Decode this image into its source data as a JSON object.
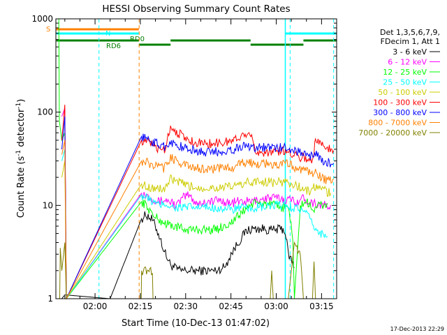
{
  "chart_data": {
    "type": "line",
    "title": "HESSI Observing Summary Count Rates",
    "xlabel": "Start Time (10-Dec-13 01:47:02)",
    "ylabel": "Count Rate (s-1 detector-1)",
    "ylabel_parts": {
      "main": "Count Rate (s",
      "exp1": "-1",
      "mid": " detector",
      "exp2": "-1",
      "end": ")"
    },
    "yscale": "log",
    "ylim": [
      1,
      1000
    ],
    "y_ticks": [
      {
        "value": 1,
        "label": "1"
      },
      {
        "value": 10,
        "label": "10"
      },
      {
        "value": 100,
        "label": "100"
      },
      {
        "value": 1000,
        "label": "1000"
      }
    ],
    "xlim_minutes": [
      107.033,
      200
    ],
    "x_ticks": [
      {
        "minutes": 120,
        "label": "02:00"
      },
      {
        "minutes": 135,
        "label": "02:15"
      },
      {
        "minutes": 150,
        "label": "02:30"
      },
      {
        "minutes": 165,
        "label": "02:45"
      },
      {
        "minutes": 180,
        "label": "03:00"
      },
      {
        "minutes": 195,
        "label": "03:15"
      }
    ],
    "legend_header": [
      "Det 1,3,5,6,7,9,",
      "FDecim 1, Att 1"
    ],
    "legend_placement": "right",
    "timestamp": "17-Dec-2013 22:29",
    "series": [
      {
        "name": "3 - 6 keV",
        "color": "#000000",
        "points": [
          [
            109,
            1
          ],
          [
            110,
            1.1
          ],
          [
            125,
            1
          ],
          [
            135.4,
            7.2
          ],
          [
            137,
            8
          ],
          [
            139,
            7
          ],
          [
            141,
            5
          ],
          [
            143,
            3.2
          ],
          [
            145,
            2.3
          ],
          [
            148,
            2
          ],
          [
            152,
            2
          ],
          [
            156,
            2
          ],
          [
            160,
            2
          ],
          [
            163,
            2.2
          ],
          [
            165,
            3
          ],
          [
            167,
            3.8
          ],
          [
            170,
            5.3
          ],
          [
            172,
            5.6
          ],
          [
            176,
            5.6
          ],
          [
            178,
            5.4
          ],
          [
            182,
            5.6
          ],
          [
            183,
            5.2
          ],
          [
            184,
            3
          ],
          [
            185.5,
            2.4
          ],
          [
            186,
            2
          ]
        ]
      },
      {
        "name": "6 - 12 keV",
        "color": "#ff00ff",
        "points": [
          [
            109,
            90
          ],
          [
            110,
            110
          ],
          [
            110.5,
            1
          ],
          [
            135.4,
            13.5
          ],
          [
            137,
            13
          ],
          [
            139,
            12
          ],
          [
            141,
            11
          ],
          [
            143,
            11.5
          ],
          [
            145,
            11
          ],
          [
            147,
            10
          ],
          [
            149,
            12
          ],
          [
            151,
            13
          ],
          [
            153,
            11
          ],
          [
            155,
            10.5
          ],
          [
            157,
            11
          ],
          [
            159,
            11
          ],
          [
            161,
            11.5
          ],
          [
            163,
            11
          ],
          [
            165,
            10.5
          ],
          [
            167,
            11
          ],
          [
            169,
            11
          ],
          [
            172,
            11
          ],
          [
            174,
            11.5
          ],
          [
            177,
            12
          ],
          [
            180,
            12
          ],
          [
            183,
            11.5
          ],
          [
            185,
            11.5
          ],
          [
            187,
            11
          ],
          [
            189,
            12
          ],
          [
            191,
            11
          ],
          [
            193,
            10.5
          ],
          [
            196,
            10
          ],
          [
            198,
            9.5
          ]
        ]
      },
      {
        "name": "12 - 25 keV",
        "color": "#00ff00",
        "points": [
          [
            108,
            1000
          ],
          [
            108.2,
            80
          ],
          [
            109,
            50
          ],
          [
            110,
            60
          ],
          [
            110.5,
            1
          ],
          [
            135.4,
            11
          ],
          [
            137,
            10
          ],
          [
            139,
            8
          ],
          [
            141,
            7
          ],
          [
            143,
            6.5
          ],
          [
            146,
            6
          ],
          [
            150,
            5.5
          ],
          [
            155,
            5.5
          ],
          [
            160,
            5.5
          ],
          [
            165,
            6.5
          ],
          [
            168,
            8
          ],
          [
            171,
            10
          ],
          [
            173,
            10.5
          ],
          [
            176,
            10.5
          ],
          [
            179,
            10
          ],
          [
            182,
            9.5
          ],
          [
            184,
            9.5
          ],
          [
            185.5,
            4.5
          ],
          [
            186,
            1
          ],
          [
            188,
            10
          ],
          [
            190,
            11
          ],
          [
            192,
            9
          ],
          [
            194,
            10
          ],
          [
            197,
            10
          ]
        ]
      },
      {
        "name": "25 - 50 keV",
        "color": "#00ffff",
        "points": [
          [
            109,
            30
          ],
          [
            110,
            40
          ],
          [
            110.5,
            1
          ],
          [
            135.4,
            13
          ],
          [
            137,
            12
          ],
          [
            139,
            11
          ],
          [
            141,
            10
          ],
          [
            143,
            10.5
          ],
          [
            146,
            9.5
          ],
          [
            150,
            9.5
          ],
          [
            155,
            9.5
          ],
          [
            160,
            9.5
          ],
          [
            165,
            9
          ],
          [
            168,
            9.5
          ],
          [
            171,
            9
          ],
          [
            173,
            9.5
          ],
          [
            176,
            9.5
          ],
          [
            180,
            10
          ],
          [
            183,
            10
          ],
          [
            185,
            9.5
          ],
          [
            187,
            9.5
          ],
          [
            190,
            8
          ],
          [
            192.5,
            6
          ],
          [
            194,
            5
          ],
          [
            197,
            5
          ]
        ]
      },
      {
        "name": "50 - 100 keV",
        "color": "#cccc00",
        "points": [
          [
            109,
            20
          ],
          [
            110,
            30
          ],
          [
            110.5,
            1
          ],
          [
            135.4,
            17
          ],
          [
            137,
            16
          ],
          [
            139,
            15.5
          ],
          [
            141,
            15
          ],
          [
            143,
            15
          ],
          [
            145,
            19
          ],
          [
            147,
            18
          ],
          [
            149,
            17
          ],
          [
            151,
            16
          ],
          [
            154,
            15.5
          ],
          [
            158,
            15.5
          ],
          [
            162,
            15.5
          ],
          [
            166,
            16
          ],
          [
            170,
            17.5
          ],
          [
            173,
            18
          ],
          [
            177,
            18
          ],
          [
            180,
            17.5
          ],
          [
            183,
            18
          ],
          [
            185,
            17
          ],
          [
            187,
            16
          ],
          [
            189,
            15
          ],
          [
            191,
            14
          ],
          [
            193,
            16
          ],
          [
            195,
            15
          ],
          [
            198,
            13.5
          ]
        ]
      },
      {
        "name": "100 - 300 keV",
        "color": "#ff0000",
        "points": [
          [
            109,
            50
          ],
          [
            110,
            120
          ],
          [
            110.5,
            1
          ],
          [
            135.4,
            50
          ],
          [
            137,
            48
          ],
          [
            139,
            45
          ],
          [
            141,
            40
          ],
          [
            143,
            40
          ],
          [
            145,
            70
          ],
          [
            147,
            62
          ],
          [
            149,
            55
          ],
          [
            151,
            50
          ],
          [
            154,
            47
          ],
          [
            158,
            46
          ],
          [
            162,
            47
          ],
          [
            166,
            50
          ],
          [
            170,
            60
          ],
          [
            171,
            65
          ],
          [
            173,
            38
          ],
          [
            177,
            37
          ],
          [
            180,
            38
          ],
          [
            183,
            38
          ],
          [
            185,
            37
          ],
          [
            186.5,
            35
          ],
          [
            188,
            33
          ],
          [
            190,
            32
          ],
          [
            192,
            30
          ],
          [
            193,
            50
          ],
          [
            195,
            45
          ],
          [
            197,
            42
          ],
          [
            199,
            40
          ]
        ]
      },
      {
        "name": "300 - 800 keV",
        "color": "#0000ff",
        "points": [
          [
            109,
            40
          ],
          [
            110,
            90
          ],
          [
            110.5,
            1
          ],
          [
            135.4,
            55
          ],
          [
            137,
            52
          ],
          [
            139,
            48
          ],
          [
            141,
            45
          ],
          [
            143,
            43
          ],
          [
            145,
            48
          ],
          [
            147,
            44
          ],
          [
            149,
            42
          ],
          [
            151,
            40
          ],
          [
            154,
            38
          ],
          [
            158,
            37
          ],
          [
            162,
            38
          ],
          [
            166,
            40
          ],
          [
            170,
            44
          ],
          [
            173,
            42
          ],
          [
            177,
            42
          ],
          [
            180,
            41
          ],
          [
            183,
            42
          ],
          [
            185,
            40
          ],
          [
            187,
            38
          ],
          [
            189,
            36
          ],
          [
            191,
            34
          ],
          [
            193,
            36
          ],
          [
            195,
            30
          ],
          [
            197,
            29
          ],
          [
            199,
            28
          ]
        ]
      },
      {
        "name": "800 - 7000 keV",
        "color": "#ff8000",
        "points": [
          [
            109,
            35
          ],
          [
            110,
            50
          ],
          [
            110.5,
            1
          ],
          [
            135.4,
            30
          ],
          [
            137,
            29
          ],
          [
            139,
            27
          ],
          [
            141,
            26
          ],
          [
            143,
            25
          ],
          [
            145,
            33
          ],
          [
            147,
            30
          ],
          [
            149,
            28
          ],
          [
            151,
            26
          ],
          [
            154,
            25
          ],
          [
            158,
            24.5
          ],
          [
            162,
            25
          ],
          [
            166,
            26
          ],
          [
            170,
            29
          ],
          [
            173,
            28
          ],
          [
            177,
            28
          ],
          [
            180,
            27
          ],
          [
            183,
            28
          ],
          [
            185,
            27
          ],
          [
            187,
            25
          ],
          [
            189,
            24
          ],
          [
            191,
            22
          ],
          [
            193,
            23
          ],
          [
            195,
            20
          ],
          [
            197,
            18.5
          ],
          [
            199,
            18
          ]
        ]
      },
      {
        "name": "7000 - 20000 keV",
        "color": "#808000",
        "points": [
          [
            108.3,
            1
          ],
          [
            108.5,
            3.5
          ],
          [
            109,
            2
          ],
          [
            110,
            4
          ],
          [
            110.5,
            1
          ],
          [
            135.3,
            1
          ],
          [
            135.4,
            2
          ],
          [
            139,
            2
          ],
          [
            139.2,
            1
          ],
          [
            178,
            1
          ],
          [
            178.5,
            2
          ],
          [
            179,
            1
          ],
          [
            184,
            1
          ],
          [
            186,
            4
          ],
          [
            188,
            3
          ],
          [
            189,
            1
          ],
          [
            192,
            1
          ],
          [
            192.5,
            2.5
          ],
          [
            193,
            1
          ]
        ]
      }
    ],
    "state_bars": [
      {
        "label": "S",
        "color": "#ff8000"
      },
      {
        "label": "N",
        "color": "#00ffff"
      },
      {
        "label": "RD6",
        "color": "#008000"
      },
      {
        "label": "RD0",
        "color": "#008000"
      }
    ]
  }
}
